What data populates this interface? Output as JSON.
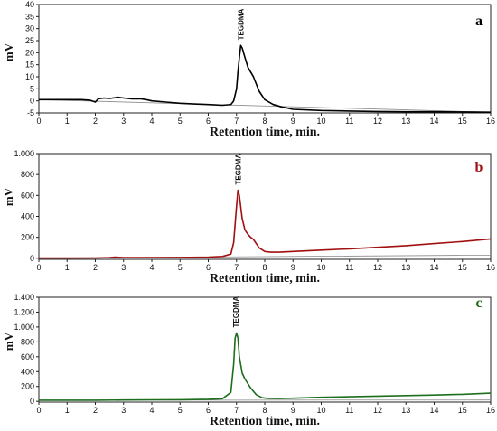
{
  "x_axis_label": "Retention time, min.",
  "y_axis_label": "mV",
  "peak_label": "TEGDMA",
  "chart_data": [
    {
      "type": "line",
      "panel_label": "a",
      "color": "#000000",
      "xlim": [
        0,
        16
      ],
      "ylim": [
        -5,
        40
      ],
      "xticks": [
        0,
        1,
        2,
        3,
        4,
        5,
        6,
        7,
        8,
        9,
        10,
        11,
        12,
        13,
        14,
        15,
        16
      ],
      "yticks": [
        -5,
        0,
        5,
        10,
        15,
        20,
        25,
        30,
        35,
        40
      ],
      "ytick_labels": [
        "-5",
        "0",
        "5",
        "10",
        "15",
        "20",
        "25",
        "30",
        "35",
        "40"
      ],
      "peak_x": 7.15,
      "series": [
        {
          "x": [
            0,
            0.5,
            1,
            1.5,
            1.8,
            2.0,
            2.1,
            2.3,
            2.5,
            2.8,
            3.0,
            3.3,
            3.6,
            3.8,
            4.0,
            4.5,
            5.0,
            5.5,
            6.0,
            6.5,
            6.8,
            6.9,
            7.0,
            7.05,
            7.1,
            7.15,
            7.2,
            7.3,
            7.4,
            7.5,
            7.6,
            7.7,
            7.8,
            8.0,
            8.3,
            8.6,
            9.0,
            10,
            11,
            12,
            13,
            14,
            15,
            16
          ],
          "y": [
            0.5,
            0.5,
            0.5,
            0.5,
            0.3,
            -0.5,
            0.8,
            1.2,
            1.0,
            1.5,
            1.2,
            0.8,
            0.9,
            0.5,
            0.0,
            -0.5,
            -1.0,
            -1.3,
            -1.5,
            -1.8,
            -1.5,
            0,
            5,
            12,
            18,
            23,
            22,
            18,
            14,
            12,
            10,
            7,
            4,
            0.5,
            -1.5,
            -2.5,
            -3.5,
            -4.0,
            -4.2,
            -4.4,
            -4.5,
            -4.5,
            -4.6,
            -4.7
          ]
        }
      ],
      "baseline": {
        "x": [
          0,
          16
        ],
        "y": [
          0.5,
          -4.7
        ]
      }
    },
    {
      "type": "line",
      "panel_label": "b",
      "color": "#a01010",
      "xlim": [
        0,
        16
      ],
      "ylim": [
        -10,
        1000
      ],
      "xticks": [
        0,
        1,
        2,
        3,
        4,
        5,
        6,
        7,
        8,
        9,
        10,
        11,
        12,
        13,
        14,
        15,
        16
      ],
      "yticks": [
        0,
        200,
        400,
        600,
        800,
        1000
      ],
      "ytick_labels": [
        "0",
        "200",
        "400",
        "600",
        "800",
        "1.000"
      ],
      "peak_x": 7.05,
      "series": [
        {
          "x": [
            0,
            1,
            2,
            2.5,
            2.7,
            3,
            4,
            5,
            6,
            6.5,
            6.8,
            6.9,
            7.0,
            7.05,
            7.1,
            7.2,
            7.3,
            7.4,
            7.5,
            7.6,
            7.7,
            7.8,
            8.0,
            8.2,
            8.5,
            9,
            10,
            11,
            12,
            13,
            14,
            15,
            16
          ],
          "y": [
            2,
            2,
            3,
            6,
            12,
            6,
            6,
            8,
            12,
            18,
            40,
            150,
            500,
            650,
            600,
            380,
            270,
            230,
            200,
            180,
            140,
            100,
            65,
            58,
            58,
            65,
            78,
            90,
            105,
            120,
            140,
            160,
            185
          ]
        }
      ],
      "baseline": {
        "x": [
          0,
          16
        ],
        "y": [
          2,
          30
        ]
      }
    },
    {
      "type": "line",
      "panel_label": "c",
      "color": "#1e6e1e",
      "xlim": [
        0,
        16
      ],
      "ylim": [
        -10,
        1400
      ],
      "xticks": [
        0,
        1,
        2,
        3,
        4,
        5,
        6,
        7,
        8,
        9,
        10,
        11,
        12,
        13,
        14,
        15,
        16
      ],
      "yticks": [
        0,
        200,
        400,
        600,
        800,
        1000,
        1200,
        1400
      ],
      "ytick_labels": [
        "0",
        "200",
        "400",
        "600",
        "800",
        "1.000",
        "1.200",
        "1.400"
      ],
      "peak_x": 6.98,
      "series": [
        {
          "x": [
            0,
            1,
            2,
            3,
            4,
            5,
            6,
            6.5,
            6.8,
            6.9,
            6.95,
            7.0,
            7.05,
            7.1,
            7.2,
            7.3,
            7.5,
            7.7,
            7.9,
            8.1,
            8.5,
            9,
            10,
            11,
            12,
            13,
            14,
            15,
            16
          ],
          "y": [
            15,
            15,
            16,
            18,
            20,
            22,
            28,
            35,
            120,
            500,
            850,
            920,
            850,
            600,
            380,
            300,
            180,
            90,
            50,
            40,
            38,
            42,
            55,
            62,
            70,
            78,
            85,
            95,
            110
          ]
        }
      ],
      "baseline": {
        "x": [
          0,
          16
        ],
        "y": [
          15,
          18
        ]
      }
    }
  ]
}
